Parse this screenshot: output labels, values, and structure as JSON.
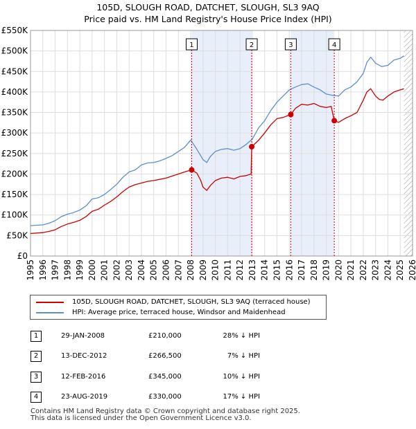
{
  "title": {
    "line1": "105D, SLOUGH ROAD, DATCHET, SLOUGH, SL3 9AQ",
    "line2": "Price paid vs. HM Land Registry's House Price Index (HPI)"
  },
  "chart_data": {
    "type": "line",
    "title": "105D, SLOUGH ROAD, DATCHET, SLOUGH, SL3 9AQ - Price paid vs. HM Land Registry's House Price Index (HPI)",
    "xlabel": "",
    "ylabel": "",
    "xlim": [
      1995,
      2026
    ],
    "ylim": [
      0,
      550000
    ],
    "grid": true,
    "y_ticks": [
      {
        "value": 0,
        "label": "£0"
      },
      {
        "value": 50000,
        "label": "£50K"
      },
      {
        "value": 100000,
        "label": "£100K"
      },
      {
        "value": 150000,
        "label": "£150K"
      },
      {
        "value": 200000,
        "label": "£200K"
      },
      {
        "value": 250000,
        "label": "£250K"
      },
      {
        "value": 300000,
        "label": "£300K"
      },
      {
        "value": 350000,
        "label": "£350K"
      },
      {
        "value": 400000,
        "label": "£400K"
      },
      {
        "value": 450000,
        "label": "£450K"
      },
      {
        "value": 500000,
        "label": "£500K"
      },
      {
        "value": 550000,
        "label": "£550K"
      }
    ],
    "x_ticks": [
      "1995",
      "1996",
      "1997",
      "1998",
      "1999",
      "2000",
      "2001",
      "2002",
      "2003",
      "2004",
      "2005",
      "2006",
      "2007",
      "2008",
      "2009",
      "2010",
      "2011",
      "2012",
      "2013",
      "2014",
      "2015",
      "2016",
      "2017",
      "2018",
      "2019",
      "2020",
      "2021",
      "2022",
      "2023",
      "2024",
      "2025",
      "2026"
    ],
    "shaded_ranges": [
      [
        2008.08,
        2012.95
      ],
      [
        2016.12,
        2019.65
      ]
    ],
    "hatched_from": 2025.3,
    "series": [
      {
        "name": "105D, SLOUGH ROAD, DATCHET, SLOUGH, SL3 9AQ (terraced house)",
        "color": "#cc0000",
        "x": [
          1995.0,
          1995.5,
          1996.0,
          1996.5,
          1997.0,
          1997.5,
          1998.0,
          1998.5,
          1999.0,
          1999.5,
          2000.0,
          2000.5,
          2001.0,
          2001.5,
          2002.0,
          2002.5,
          2003.0,
          2003.5,
          2004.0,
          2004.5,
          2005.0,
          2005.5,
          2006.0,
          2006.5,
          2007.0,
          2007.5,
          2008.08,
          2008.5,
          2008.8,
          2009.0,
          2009.3,
          2009.6,
          2010.0,
          2010.5,
          2011.0,
          2011.5,
          2012.0,
          2012.5,
          2012.9,
          2012.95,
          2013.5,
          2014.0,
          2014.5,
          2015.0,
          2015.5,
          2016.12,
          2016.5,
          2017.0,
          2017.5,
          2018.0,
          2018.5,
          2019.0,
          2019.4,
          2019.65,
          2020.0,
          2020.5,
          2021.0,
          2021.5,
          2022.0,
          2022.3,
          2022.6,
          2023.0,
          2023.3,
          2023.6,
          2024.0,
          2024.5,
          2025.0,
          2025.3
        ],
        "values": [
          55000,
          56000,
          57000,
          60000,
          64000,
          72000,
          78000,
          82000,
          87000,
          96000,
          109000,
          114000,
          124000,
          133000,
          144000,
          157000,
          168000,
          174000,
          178000,
          182000,
          184000,
          187000,
          190000,
          195000,
          200000,
          205000,
          210000,
          202000,
          185000,
          168000,
          160000,
          172000,
          184000,
          190000,
          192000,
          188000,
          194000,
          196000,
          200000,
          266500,
          282000,
          300000,
          320000,
          335000,
          338000,
          345000,
          360000,
          370000,
          368000,
          372000,
          365000,
          362000,
          365000,
          330000,
          326000,
          335000,
          342000,
          350000,
          380000,
          400000,
          408000,
          390000,
          382000,
          380000,
          390000,
          400000,
          405000,
          408000
        ]
      },
      {
        "name": "HPI: Average price, terraced house, Windsor and Maidenhead",
        "color": "#5b8fd0",
        "x": [
          1995.0,
          1995.5,
          1996.0,
          1996.5,
          1997.0,
          1997.5,
          1998.0,
          1998.5,
          1999.0,
          1999.5,
          2000.0,
          2000.5,
          2001.0,
          2001.5,
          2002.0,
          2002.5,
          2003.0,
          2003.5,
          2004.0,
          2004.5,
          2005.0,
          2005.5,
          2006.0,
          2006.5,
          2007.0,
          2007.5,
          2008.0,
          2008.5,
          2009.0,
          2009.3,
          2009.6,
          2010.0,
          2010.5,
          2011.0,
          2011.5,
          2012.0,
          2012.5,
          2013.0,
          2013.5,
          2014.0,
          2014.5,
          2015.0,
          2015.5,
          2016.0,
          2016.5,
          2017.0,
          2017.5,
          2018.0,
          2018.5,
          2019.0,
          2019.5,
          2020.0,
          2020.5,
          2021.0,
          2021.5,
          2022.0,
          2022.3,
          2022.6,
          2023.0,
          2023.5,
          2024.0,
          2024.5,
          2025.0,
          2025.3
        ],
        "values": [
          74000,
          75000,
          76000,
          80000,
          86000,
          96000,
          102000,
          106000,
          112000,
          122000,
          139000,
          142000,
          150000,
          162000,
          175000,
          192000,
          205000,
          210000,
          222000,
          227000,
          228000,
          232000,
          238000,
          245000,
          255000,
          265000,
          283000,
          260000,
          235000,
          228000,
          243000,
          255000,
          260000,
          262000,
          258000,
          262000,
          272000,
          285000,
          312000,
          330000,
          355000,
          375000,
          390000,
          405000,
          412000,
          418000,
          420000,
          412000,
          405000,
          395000,
          392000,
          390000,
          405000,
          412000,
          425000,
          445000,
          472000,
          485000,
          470000,
          462000,
          465000,
          478000,
          482000,
          488000
        ]
      }
    ],
    "markers": [
      {
        "label": "1",
        "x": 2008.08,
        "y": 210000
      },
      {
        "label": "2",
        "x": 2012.95,
        "y": 266500
      },
      {
        "label": "3",
        "x": 2016.12,
        "y": 345000
      },
      {
        "label": "4",
        "x": 2019.65,
        "y": 330000
      }
    ]
  },
  "legend": {
    "items": [
      {
        "label": "105D, SLOUGH ROAD, DATCHET, SLOUGH, SL3 9AQ (terraced house)",
        "color": "#cc0000"
      },
      {
        "label": "HPI: Average price, terraced house, Windsor and Maidenhead",
        "color": "#5b8fd0"
      }
    ]
  },
  "transactions": [
    {
      "num": "1",
      "date": "29-JAN-2008",
      "price": "£210,000",
      "hpi": "28% ↓ HPI"
    },
    {
      "num": "2",
      "date": "13-DEC-2012",
      "price": "£266,500",
      "hpi": "7% ↓ HPI"
    },
    {
      "num": "3",
      "date": "12-FEB-2016",
      "price": "£345,000",
      "hpi": "10% ↓ HPI"
    },
    {
      "num": "4",
      "date": "23-AUG-2019",
      "price": "£330,000",
      "hpi": "17% ↓ HPI"
    }
  ],
  "footer": {
    "line1": "Contains HM Land Registry data © Crown copyright and database right 2025.",
    "line2": "This data is licensed under the Open Government Licence v3.0."
  }
}
